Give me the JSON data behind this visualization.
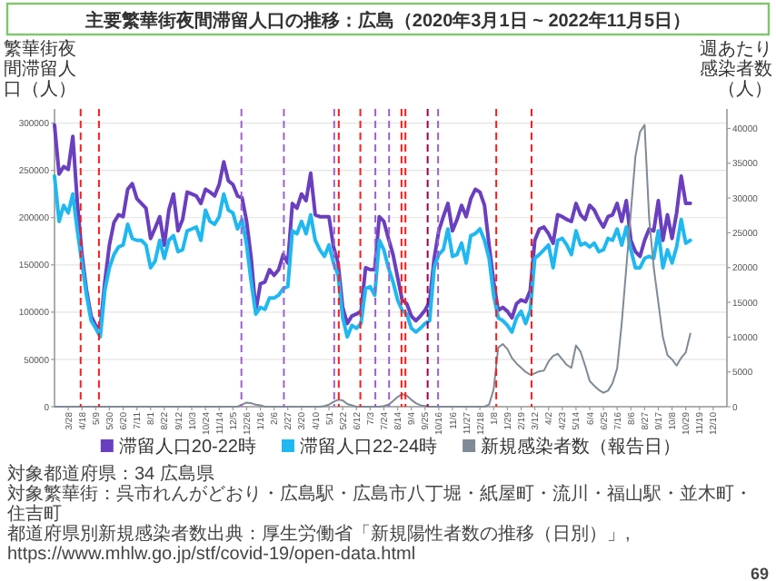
{
  "chart_data": {
    "type": "line",
    "title": "主要繁華街夜間滞留人口の推移：広島（2020年3月1日 ~ 2022年11月5日）",
    "ylabel": "繁華街夜間滞留人口（人）",
    "y2label": "週あたり感染者数（人）",
    "x": [
      "2020-03-07",
      "2020-03-14",
      "2020-03-21",
      "2020-03-28",
      "2020-04-04",
      "2020-04-11",
      "2020-04-18",
      "2020-04-25",
      "2020-05-02",
      "2020-05-09",
      "2020-05-16",
      "2020-05-23",
      "2020-05-30",
      "2020-06-06",
      "2020-06-13",
      "2020-06-20",
      "2020-06-27",
      "2020-07-04",
      "2020-07-11",
      "2020-07-18",
      "2020-07-25",
      "2020-08-01",
      "2020-08-08",
      "2020-08-15",
      "2020-08-22",
      "2020-08-29",
      "2020-09-05",
      "2020-09-12",
      "2020-09-19",
      "2020-09-26",
      "2020-10-03",
      "2020-10-10",
      "2020-10-17",
      "2020-10-24",
      "2020-10-31",
      "2020-11-07",
      "2020-11-14",
      "2020-11-21",
      "2020-11-28",
      "2020-12-05",
      "2020-12-12",
      "2020-12-19",
      "2020-12-26",
      "2021-01-02",
      "2021-01-09",
      "2021-01-16",
      "2021-01-23",
      "2021-01-30",
      "2021-02-06",
      "2021-02-13",
      "2021-02-20",
      "2021-02-27",
      "2021-03-06",
      "2021-03-13",
      "2021-03-20",
      "2021-03-27",
      "2021-04-03",
      "2021-04-10",
      "2021-04-17",
      "2021-04-24",
      "2021-05-01",
      "2021-05-08",
      "2021-05-15",
      "2021-05-22",
      "2021-05-29",
      "2021-06-05",
      "2021-06-12",
      "2021-06-19",
      "2021-06-26",
      "2021-07-03",
      "2021-07-10",
      "2021-07-17",
      "2021-07-24",
      "2021-07-31",
      "2021-08-07",
      "2021-08-14",
      "2021-08-21",
      "2021-08-28",
      "2021-09-04",
      "2021-09-11",
      "2021-09-18",
      "2021-09-25",
      "2021-10-02",
      "2021-10-09",
      "2021-10-16",
      "2021-10-23",
      "2021-10-30",
      "2021-11-06",
      "2021-11-13",
      "2021-11-20",
      "2021-11-27",
      "2021-12-04",
      "2021-12-11",
      "2021-12-18",
      "2021-12-25",
      "2022-01-01",
      "2022-01-08",
      "2022-01-15",
      "2022-01-22",
      "2022-01-29",
      "2022-02-05",
      "2022-02-12",
      "2022-02-19",
      "2022-02-26",
      "2022-03-05",
      "2022-03-12",
      "2022-03-19",
      "2022-03-26",
      "2022-04-02",
      "2022-04-09",
      "2022-04-16",
      "2022-04-23",
      "2022-04-30",
      "2022-05-07",
      "2022-05-14",
      "2022-05-21",
      "2022-05-28",
      "2022-06-04",
      "2022-06-11",
      "2022-06-18",
      "2022-06-25",
      "2022-07-02",
      "2022-07-09",
      "2022-07-16",
      "2022-07-23",
      "2022-07-30",
      "2022-08-06",
      "2022-08-13",
      "2022-08-20",
      "2022-08-27",
      "2022-09-03",
      "2022-09-10",
      "2022-09-17",
      "2022-09-24",
      "2022-10-01",
      "2022-10-08",
      "2022-10-15",
      "2022-10-22",
      "2022-10-29",
      "2022-11-05"
    ],
    "series": [
      {
        "name": "滞留人口20-22時",
        "color": "#6a3fbf",
        "values": [
          298000,
          246000,
          254000,
          251000,
          286000,
          215000,
          161000,
          123000,
          96000,
          86000,
          83000,
          132000,
          171000,
          195000,
          203000,
          201000,
          230000,
          236000,
          220000,
          215000,
          210000,
          178000,
          189000,
          201000,
          171000,
          208000,
          225000,
          186000,
          198000,
          227000,
          225000,
          223000,
          215000,
          230000,
          227000,
          223000,
          235000,
          259000,
          239000,
          235000,
          223000,
          221000,
          196000,
          157000,
          101000,
          130000,
          132000,
          145000,
          139000,
          145000,
          161000,
          152000,
          215000,
          210000,
          225000,
          218000,
          247000,
          203000,
          201000,
          201000,
          201000,
          169000,
          152000,
          105000,
          88000,
          96000,
          98000,
          101000,
          147000,
          145000,
          145000,
          201000,
          196000,
          178000,
          161000,
          137000,
          113000,
          109000,
          96000,
          91000,
          96000,
          102000,
          111000,
          157000,
          186000,
          201000,
          215000,
          186000,
          198000,
          213000,
          201000,
          220000,
          230000,
          227000,
          213000,
          171000,
          132000,
          102000,
          105000,
          101000,
          94000,
          109000,
          113000,
          111000,
          123000,
          176000,
          188000,
          190000,
          183000,
          173000,
          203000,
          201000,
          198000,
          196000,
          215000,
          203000,
          198000,
          213000,
          208000,
          198000,
          190000,
          201000,
          203000,
          215000,
          196000,
          218000,
          176000,
          164000,
          159000,
          176000,
          188000,
          186000,
          218000,
          176000,
          203000,
          178000,
          205000,
          244000,
          215000,
          215000
        ]
      },
      {
        "name": "滞留人口22-24時",
        "color": "#1fb8f0",
        "values": [
          244000,
          196000,
          213000,
          205000,
          225000,
          186000,
          152000,
          118000,
          91000,
          83000,
          74000,
          123000,
          147000,
          161000,
          169000,
          171000,
          193000,
          178000,
          176000,
          176000,
          171000,
          147000,
          154000,
          176000,
          157000,
          176000,
          181000,
          164000,
          166000,
          186000,
          188000,
          190000,
          176000,
          208000,
          196000,
          193000,
          201000,
          225000,
          208000,
          205000,
          188000,
          198000,
          171000,
          132000,
          98000,
          105000,
          103000,
          115000,
          115000,
          118000,
          125000,
          127000,
          186000,
          183000,
          196000,
          183000,
          203000,
          176000,
          166000,
          159000,
          171000,
          152000,
          139000,
          94000,
          74000,
          86000,
          83000,
          88000,
          125000,
          127000,
          118000,
          176000,
          166000,
          147000,
          132000,
          113000,
          102000,
          98000,
          83000,
          79000,
          83000,
          88000,
          91000,
          147000,
          161000,
          166000,
          188000,
          159000,
          161000,
          173000,
          152000,
          181000,
          183000,
          188000,
          176000,
          157000,
          118000,
          94000,
          91000,
          86000,
          79000,
          94000,
          101000,
          88000,
          102000,
          157000,
          161000,
          166000,
          171000,
          147000,
          176000,
          178000,
          171000,
          161000,
          186000,
          171000,
          173000,
          169000,
          173000,
          164000,
          166000,
          178000,
          176000,
          188000,
          171000,
          190000,
          166000,
          147000,
          147000,
          157000,
          159000,
          157000,
          186000,
          147000,
          166000,
          152000,
          169000,
          198000,
          173000,
          176000
        ]
      },
      {
        "name": "新規感染者数（報告日）",
        "color": "#7f8a96",
        "axis": "y2",
        "values": [
          0,
          0,
          0,
          0,
          0,
          0,
          0,
          0,
          0,
          0,
          0,
          0,
          0,
          0,
          0,
          0,
          0,
          0,
          0,
          0,
          0,
          0,
          0,
          0,
          0,
          0,
          0,
          0,
          0,
          0,
          0,
          0,
          0,
          0,
          0,
          0,
          0,
          0,
          0,
          0,
          0,
          300,
          600,
          500,
          300,
          200,
          0,
          0,
          0,
          0,
          0,
          0,
          0,
          0,
          0,
          0,
          0,
          0,
          0,
          100,
          300,
          700,
          1000,
          900,
          400,
          200,
          0,
          0,
          0,
          0,
          0,
          0,
          100,
          300,
          800,
          1400,
          1800,
          1600,
          1000,
          500,
          200,
          100,
          0,
          0,
          0,
          0,
          0,
          0,
          0,
          0,
          0,
          0,
          0,
          0,
          0,
          300,
          2500,
          8500,
          9000,
          8300,
          7000,
          6200,
          5600,
          5000,
          4600,
          4800,
          5100,
          5200,
          6500,
          7300,
          7600,
          6800,
          6000,
          5600,
          8800,
          7900,
          5900,
          3700,
          3000,
          2400,
          2000,
          2300,
          3400,
          5500,
          12000,
          20000,
          28000,
          36000,
          39500,
          40500,
          27000,
          20000,
          15000,
          10000,
          7400,
          6800,
          5900,
          7000,
          7800,
          10500
        ]
      }
    ],
    "xlim": [
      "2020-03-07",
      "2022-12-31"
    ],
    "xticks": [
      {
        "value": "2020-03-28",
        "label": "3/28"
      },
      {
        "value": "2020-04-18",
        "label": "4/18"
      },
      {
        "value": "2020-05-09",
        "label": "5/9"
      },
      {
        "value": "2020-05-30",
        "label": "5/30"
      },
      {
        "value": "2020-06-20",
        "label": "6/20"
      },
      {
        "value": "2020-07-11",
        "label": "7/11"
      },
      {
        "value": "2020-08-01",
        "label": "8/1"
      },
      {
        "value": "2020-08-22",
        "label": "8/22"
      },
      {
        "value": "2020-09-12",
        "label": "9/12"
      },
      {
        "value": "2020-10-03",
        "label": "10/3"
      },
      {
        "value": "2020-10-24",
        "label": "10/24"
      },
      {
        "value": "2020-11-14",
        "label": "11/14"
      },
      {
        "value": "2020-12-05",
        "label": "12/5"
      },
      {
        "value": "2020-12-26",
        "label": "12/26"
      },
      {
        "value": "2021-01-16",
        "label": "1/16"
      },
      {
        "value": "2021-02-06",
        "label": "2/6"
      },
      {
        "value": "2021-02-27",
        "label": "2/27"
      },
      {
        "value": "2021-03-20",
        "label": "3/20"
      },
      {
        "value": "2021-04-10",
        "label": "4/10"
      },
      {
        "value": "2021-05-01",
        "label": "5/1"
      },
      {
        "value": "2021-05-22",
        "label": "5/22"
      },
      {
        "value": "2021-06-12",
        "label": "6/12"
      },
      {
        "value": "2021-07-03",
        "label": "7/3"
      },
      {
        "value": "2021-07-24",
        "label": "7/24"
      },
      {
        "value": "2021-08-14",
        "label": "8/14"
      },
      {
        "value": "2021-09-04",
        "label": "9/4"
      },
      {
        "value": "2021-09-25",
        "label": "9/25"
      },
      {
        "value": "2021-10-16",
        "label": "10/16"
      },
      {
        "value": "2021-11-06",
        "label": "11/6"
      },
      {
        "value": "2021-11-27",
        "label": "11/27"
      },
      {
        "value": "2021-12-18",
        "label": "12/18"
      },
      {
        "value": "2022-01-08",
        "label": "1/8"
      },
      {
        "value": "2022-01-29",
        "label": "1/29"
      },
      {
        "value": "2022-02-19",
        "label": "2/19"
      },
      {
        "value": "2022-03-12",
        "label": "3/12"
      },
      {
        "value": "2022-04-02",
        "label": "4/2"
      },
      {
        "value": "2022-04-23",
        "label": "4/23"
      },
      {
        "value": "2022-05-14",
        "label": "5/14"
      },
      {
        "value": "2022-06-04",
        "label": "6/4"
      },
      {
        "value": "2022-06-25",
        "label": "6/25"
      },
      {
        "value": "2022-07-16",
        "label": "7/16"
      },
      {
        "value": "2022-08-06",
        "label": "8/6"
      },
      {
        "value": "2022-08-27",
        "label": "8/27"
      },
      {
        "value": "2022-09-17",
        "label": "9/17"
      },
      {
        "value": "2022-10-08",
        "label": "10/8"
      },
      {
        "value": "2022-10-29",
        "label": "10/29"
      },
      {
        "value": "2022-11-19",
        "label": "11/19"
      },
      {
        "value": "2022-12-10",
        "label": "12/10"
      }
    ],
    "ylim": [
      0,
      315000
    ],
    "yticks": [
      0,
      50000,
      100000,
      150000,
      200000,
      250000,
      300000
    ],
    "y2lim": [
      0,
      42800
    ],
    "y2ticks": [
      0,
      5000,
      10000,
      15000,
      20000,
      25000,
      30000,
      35000,
      40000
    ],
    "ref_lines": [
      {
        "axis": "x",
        "value": "2020-04-16",
        "color": "#ff1a1a",
        "line_style": "dashed"
      },
      {
        "axis": "x",
        "value": "2020-05-14",
        "color": "#ff1a1a",
        "line_style": "dashed"
      },
      {
        "axis": "x",
        "value": "2020-12-18",
        "color": "#9a62cc",
        "line_style": "dashed"
      },
      {
        "axis": "x",
        "value": "2021-02-21",
        "color": "#9a62cc",
        "line_style": "dashed"
      },
      {
        "axis": "x",
        "value": "2021-05-09",
        "color": "#9a62cc",
        "line_style": "dashed"
      },
      {
        "axis": "x",
        "value": "2021-05-16",
        "color": "#ff1a1a",
        "line_style": "dashed"
      },
      {
        "axis": "x",
        "value": "2021-06-18",
        "color": "#ff1a1a",
        "line_style": "dashed"
      },
      {
        "axis": "x",
        "value": "2021-07-11",
        "color": "#9a62cc",
        "line_style": "dashed"
      },
      {
        "axis": "x",
        "value": "2021-08-01",
        "color": "#9a62cc",
        "line_style": "dashed"
      },
      {
        "axis": "x",
        "value": "2021-08-20",
        "color": "#ff1a1a",
        "line_style": "dashed"
      },
      {
        "axis": "x",
        "value": "2021-08-26",
        "color": "#ff1a1a",
        "line_style": "dashed"
      },
      {
        "axis": "x",
        "value": "2021-09-29",
        "color": "#99004d",
        "line_style": "dashed"
      },
      {
        "axis": "x",
        "value": "2021-10-15",
        "color": "#9a62cc",
        "line_style": "dashed"
      },
      {
        "axis": "x",
        "value": "2022-01-12",
        "color": "#ff1a1a",
        "line_style": "dashed"
      },
      {
        "axis": "x",
        "value": "2022-03-07",
        "color": "#ff1a1a",
        "line_style": "dashed"
      }
    ],
    "grid": "y",
    "legend": "bottom",
    "marker": "none",
    "line_style": "solid",
    "annotations": [
      "対象都道府県：34 広島県",
      "対象繁華街：呉市れんがどおり・広島駅・広島市八丁堀・紙屋町・流川・福山駅・並木町・住吉町",
      "都道府県別新規感染者数出典：厚生労働省「新規陽性者数の推移（日別）」, https://www.mhlw.go.jp/stf/covid-19/open-data.html",
      "69"
    ]
  }
}
